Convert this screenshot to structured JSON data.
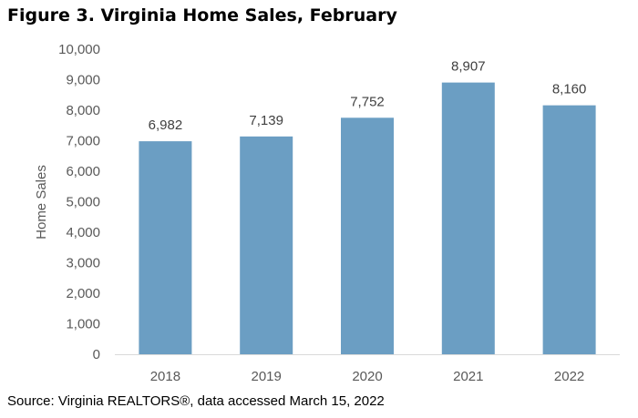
{
  "title": "Figure 3. Virginia Home Sales, February",
  "source": "Source: Virginia REALTORS®, data accessed March 15, 2022",
  "chart_data": {
    "type": "bar",
    "title": "Figure 3. Virginia Home Sales, February",
    "xlabel": "",
    "ylabel": "Home Sales",
    "categories": [
      "2018",
      "2019",
      "2020",
      "2021",
      "2022"
    ],
    "values": [
      6982,
      7139,
      7752,
      8907,
      8160
    ],
    "data_labels": [
      "6,982",
      "7,139",
      "7,752",
      "8,907",
      "8,160"
    ],
    "ylim": [
      0,
      10000
    ],
    "yticks": [
      "0",
      "1,000",
      "2,000",
      "3,000",
      "4,000",
      "5,000",
      "6,000",
      "7,000",
      "8,000",
      "9,000",
      "10,000"
    ],
    "ytick_values": [
      0,
      1000,
      2000,
      3000,
      4000,
      5000,
      6000,
      7000,
      8000,
      9000,
      10000
    ],
    "grid": false,
    "legend": "none",
    "bar_color": "#6b9ec3",
    "axis_color": "#d9d9d9"
  }
}
